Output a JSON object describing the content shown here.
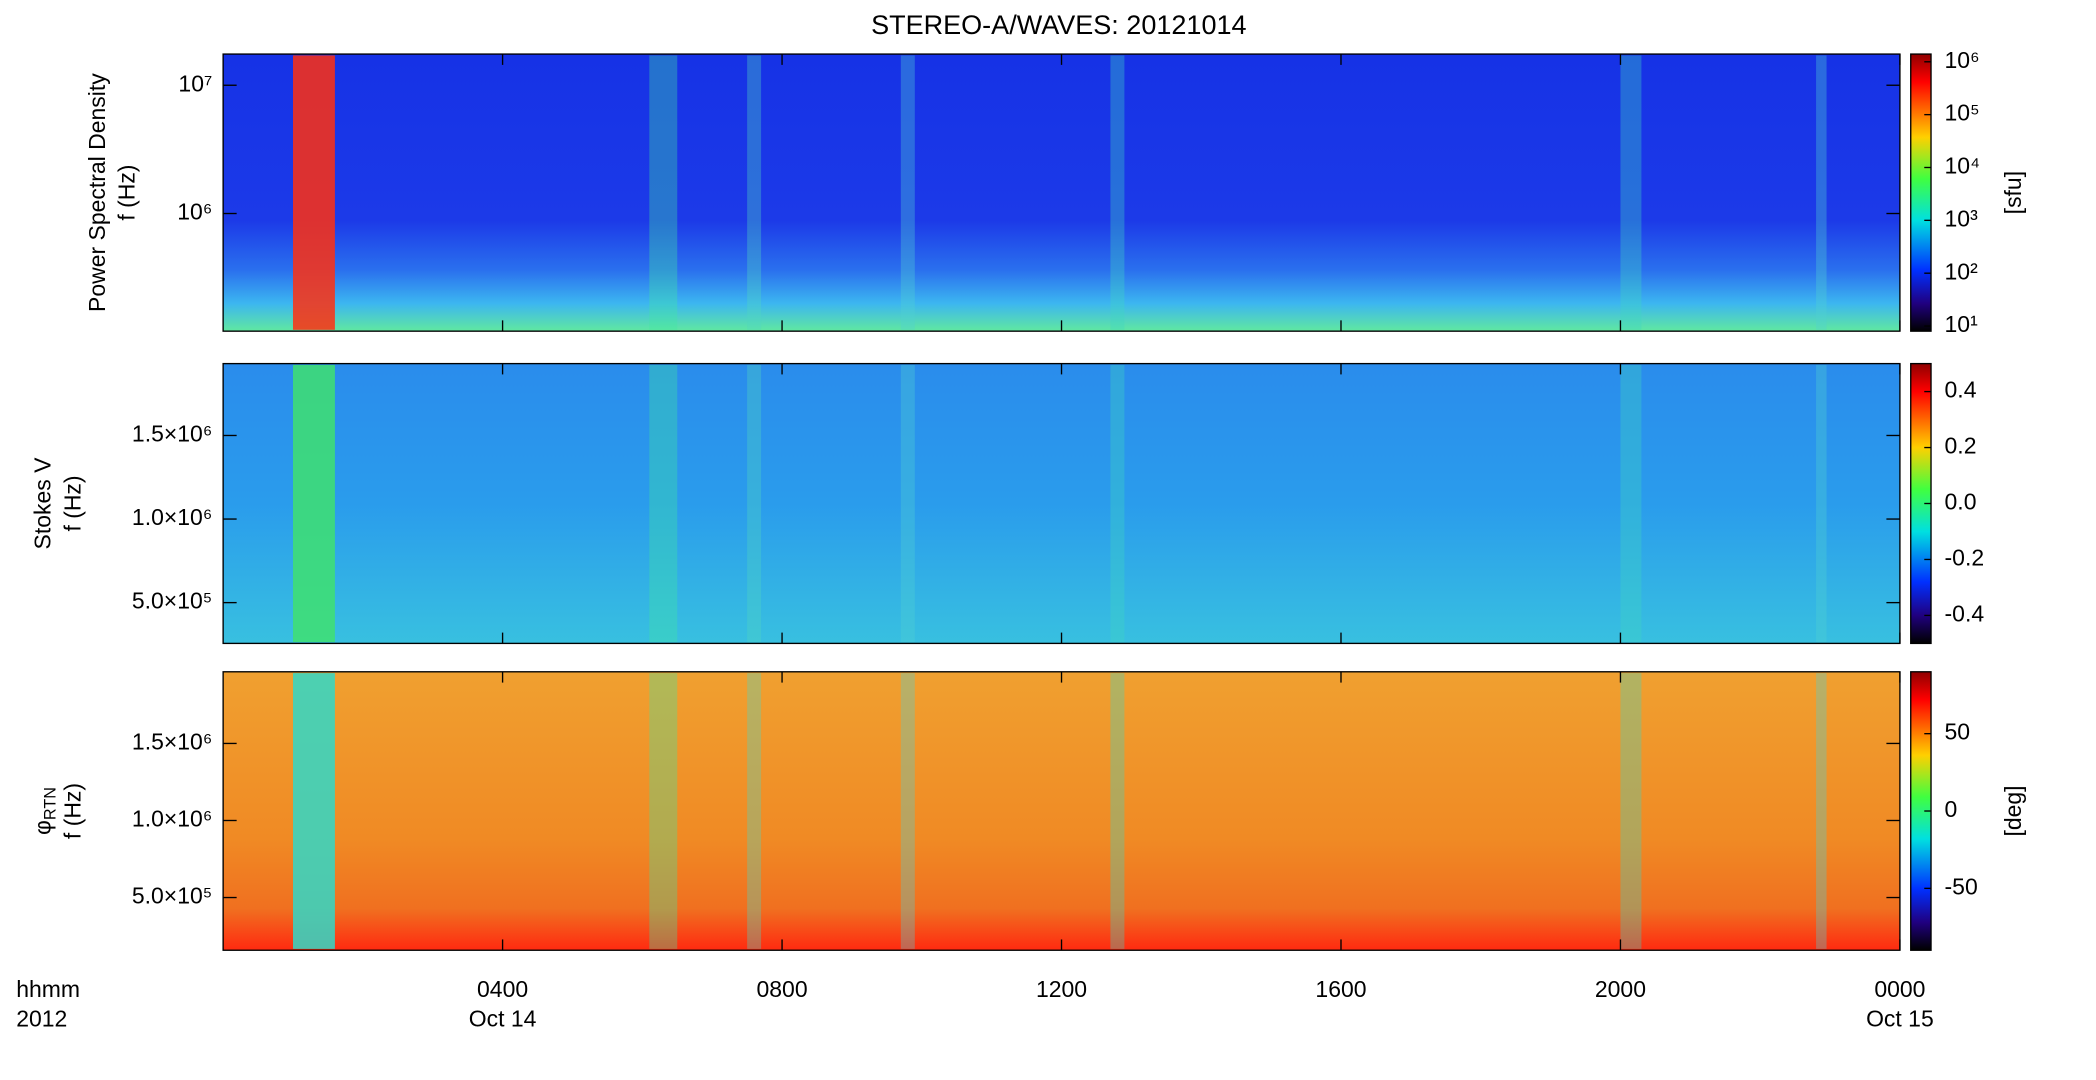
{
  "chart_data": {
    "type": "spectrogram",
    "title": "STEREO-A/WAVES: 20121014",
    "xlabel": "hhmm",
    "xlabel2": "2012",
    "xlim": [
      0,
      24
    ],
    "xticks": [
      {
        "value": 4,
        "label": "0400"
      },
      {
        "value": 8,
        "label": "0800"
      },
      {
        "value": 12,
        "label": "1200"
      },
      {
        "value": 16,
        "label": "1600"
      },
      {
        "value": 20,
        "label": "2000"
      },
      {
        "value": 24,
        "label": "0000"
      }
    ],
    "xdates": [
      {
        "value": 4,
        "label": "Oct 14"
      },
      {
        "value": 24,
        "label": "Oct 15"
      }
    ],
    "panels": [
      {
        "ylabel": "Power Spectral Density",
        "ylabel2": "f (Hz)",
        "ylog": true,
        "ylim": [
          121000,
          17500000
        ],
        "yticks": [
          {
            "value": 1000000,
            "label": "10⁶"
          },
          {
            "value": 10000000,
            "label": "10⁷"
          }
        ],
        "colorbar": {
          "log": true,
          "lim": [
            8,
            1400000
          ],
          "label": "[sfu]",
          "ticks": [
            {
              "value": 10,
              "label": "10¹"
            },
            {
              "value": 100,
              "label": "10²"
            },
            {
              "value": 1000,
              "label": "10³"
            },
            {
              "value": 10000,
              "label": "10⁴"
            },
            {
              "value": 100000,
              "label": "10⁵"
            },
            {
              "value": 1000000,
              "label": "10⁶"
            }
          ]
        }
      },
      {
        "ylabel": "Stokes V",
        "ylabel2": "f (Hz)",
        "ylog": false,
        "ylim": [
          256000,
          1930000
        ],
        "yticks": [
          {
            "value": 500000,
            "label": "5.0×10⁵"
          },
          {
            "value": 1000000,
            "label": "1.0×10⁶"
          },
          {
            "value": 1500000,
            "label": "1.5×10⁶"
          }
        ],
        "colorbar": {
          "log": false,
          "lim": [
            -0.5,
            0.5
          ],
          "ticks": [
            -0.4,
            -0.2,
            {
              "value": 0,
              "label": "0.0"
            },
            0.2,
            0.4
          ]
        }
      },
      {
        "ylabel": "φ",
        "ylabel_sub": "RTN",
        "ylabel2": "f (Hz)",
        "ylog": false,
        "ylim": [
          158000,
          1965000
        ],
        "yticks": [
          {
            "value": 500000,
            "label": "5.0×10⁵"
          },
          {
            "value": 1000000,
            "label": "1.0×10⁶"
          },
          {
            "value": 1500000,
            "label": "1.5×10⁶"
          }
        ],
        "colorbar": {
          "log": false,
          "lim": [
            -90,
            90
          ],
          "label": "[deg]",
          "ticks": [
            -50,
            0,
            50
          ]
        }
      }
    ]
  }
}
